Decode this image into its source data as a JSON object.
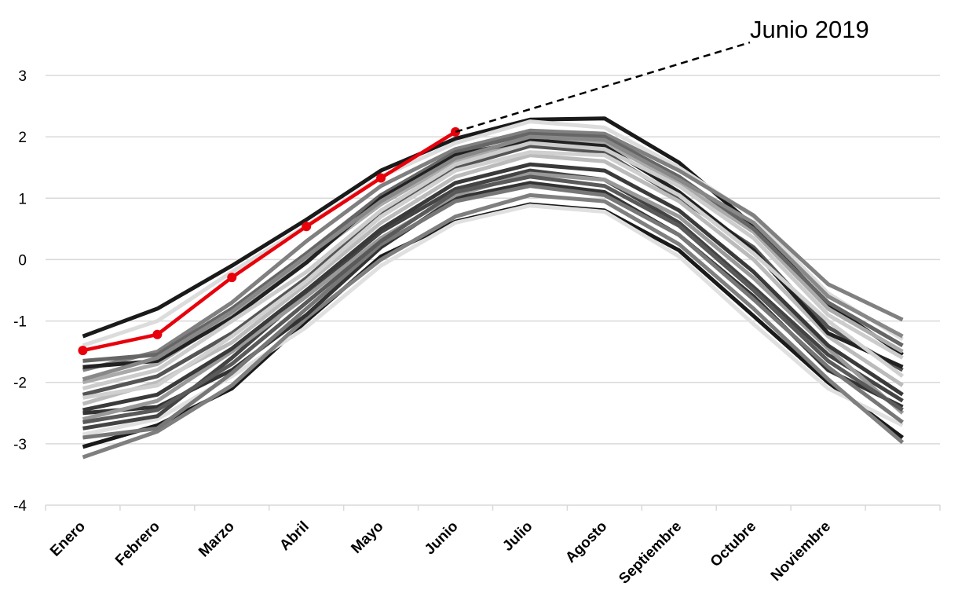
{
  "chart_data": {
    "type": "line",
    "categories": [
      "Enero",
      "Febrero",
      "Marzo",
      "Abril",
      "Mayo",
      "Junio",
      "Julio",
      "Agosto",
      "Septiembre",
      "Octubre",
      "Noviembre",
      ""
    ],
    "ylim": [
      -4,
      3
    ],
    "yticks": [
      3,
      2,
      1,
      0,
      -1,
      -2,
      -3,
      -4
    ],
    "ytick_labels": [
      "3",
      "2",
      "1",
      "0",
      "-1",
      "-2",
      "-3",
      "-4"
    ],
    "grid": true,
    "legend": "none",
    "highlight_color": "#e8000b",
    "annotation": {
      "text": "Junio 2019",
      "points_to": {
        "x": "Junio",
        "y": 2.08
      }
    },
    "highlight_series": {
      "values": [
        -1.48,
        -1.22,
        -0.29,
        0.54,
        1.33,
        2.08,
        null,
        null,
        null,
        null,
        null,
        null
      ]
    },
    "background_series": [
      {
        "color": "#1a1a1a",
        "values": [
          -1.25,
          -0.8,
          -0.1,
          0.65,
          1.45,
          1.97,
          2.28,
          2.3,
          1.58,
          0.55,
          -0.72,
          -1.55
        ]
      },
      {
        "color": "#1a1a1a",
        "values": [
          -3.05,
          -2.7,
          -2.1,
          -1.0,
          0.05,
          0.62,
          0.9,
          0.8,
          0.15,
          -0.92,
          -2.0,
          -2.9
        ]
      },
      {
        "color": "#dcdcdc",
        "values": [
          -1.4,
          -1.0,
          -0.2,
          0.55,
          1.35,
          1.9,
          2.25,
          2.15,
          1.5,
          0.7,
          -0.55,
          -1.3
        ]
      },
      {
        "color": "#e0e0e0",
        "values": [
          -2.85,
          -2.6,
          -1.9,
          -1.1,
          -0.1,
          0.6,
          0.88,
          0.78,
          0.05,
          -1.05,
          -2.1,
          -2.7
        ]
      },
      {
        "color": "#7f7f7f",
        "values": [
          -3.22,
          -2.8,
          -2.05,
          -0.95,
          0.0,
          0.7,
          1.05,
          0.95,
          0.25,
          -0.8,
          -1.95,
          -2.98
        ]
      },
      {
        "color": "#808080",
        "values": [
          -1.8,
          -1.5,
          -0.7,
          0.3,
          1.2,
          1.8,
          2.1,
          2.05,
          1.45,
          0.72,
          -0.4,
          -0.98
        ]
      },
      {
        "color": "#333333",
        "values": [
          -2.5,
          -2.4,
          -1.8,
          -0.9,
          0.2,
          1.0,
          1.25,
          1.1,
          0.4,
          -0.6,
          -1.8,
          -2.4
        ]
      },
      {
        "color": "#555555",
        "values": [
          -2.2,
          -1.9,
          -1.2,
          -0.3,
          0.75,
          1.5,
          1.85,
          1.75,
          1.0,
          0.2,
          -1.1,
          -1.8
        ]
      },
      {
        "color": "#aaaaaa",
        "values": [
          -2.0,
          -1.7,
          -0.9,
          0.0,
          0.9,
          1.6,
          1.95,
          1.9,
          1.25,
          0.45,
          -0.8,
          -1.5
        ]
      },
      {
        "color": "#444444",
        "values": [
          -2.75,
          -2.55,
          -1.6,
          -0.55,
          0.45,
          1.15,
          1.45,
          1.3,
          0.6,
          -0.45,
          -1.55,
          -2.3
        ]
      },
      {
        "color": "#bbbbbb",
        "values": [
          -2.35,
          -2.0,
          -1.35,
          -0.4,
          0.6,
          1.35,
          1.7,
          1.6,
          0.95,
          0.0,
          -1.25,
          -2.05
        ]
      },
      {
        "color": "#666666",
        "values": [
          -1.65,
          -1.55,
          -0.8,
          0.1,
          1.05,
          1.75,
          2.05,
          2.0,
          1.35,
          0.5,
          -0.7,
          -1.4
        ]
      },
      {
        "color": "#999999",
        "values": [
          -2.6,
          -2.3,
          -1.5,
          -0.6,
          0.35,
          1.05,
          1.4,
          1.3,
          0.7,
          -0.3,
          -1.45,
          -2.5
        ]
      },
      {
        "color": "#222222",
        "values": [
          -1.75,
          -1.65,
          -0.95,
          -0.05,
          1.0,
          1.7,
          1.95,
          1.85,
          1.1,
          0.15,
          -1.2,
          -1.75
        ]
      },
      {
        "color": "#cccccc",
        "values": [
          -2.1,
          -1.8,
          -1.0,
          -0.2,
          0.8,
          1.55,
          1.9,
          1.8,
          1.2,
          0.35,
          -0.9,
          -1.6
        ]
      },
      {
        "color": "#777777",
        "values": [
          -2.9,
          -2.75,
          -1.85,
          -0.8,
          0.25,
          0.95,
          1.2,
          1.05,
          0.4,
          -0.65,
          -1.75,
          -2.65
        ]
      },
      {
        "color": "#888888",
        "values": [
          -1.95,
          -1.6,
          -0.85,
          0.05,
          0.95,
          1.65,
          2.0,
          1.95,
          1.3,
          0.6,
          -0.6,
          -1.25
        ]
      },
      {
        "color": "#3a3a3a",
        "values": [
          -2.45,
          -2.2,
          -1.45,
          -0.5,
          0.5,
          1.25,
          1.55,
          1.45,
          0.8,
          -0.2,
          -1.4,
          -2.2
        ]
      },
      {
        "color": "#d0d0d0",
        "values": [
          -2.25,
          -2.05,
          -1.25,
          -0.35,
          0.7,
          1.45,
          1.75,
          1.7,
          1.05,
          0.1,
          -1.0,
          -1.9
        ]
      },
      {
        "color": "#5a5a5a",
        "values": [
          -2.65,
          -2.45,
          -1.7,
          -0.7,
          0.3,
          1.1,
          1.35,
          1.2,
          0.55,
          -0.5,
          -1.65,
          -2.45
        ]
      }
    ]
  }
}
